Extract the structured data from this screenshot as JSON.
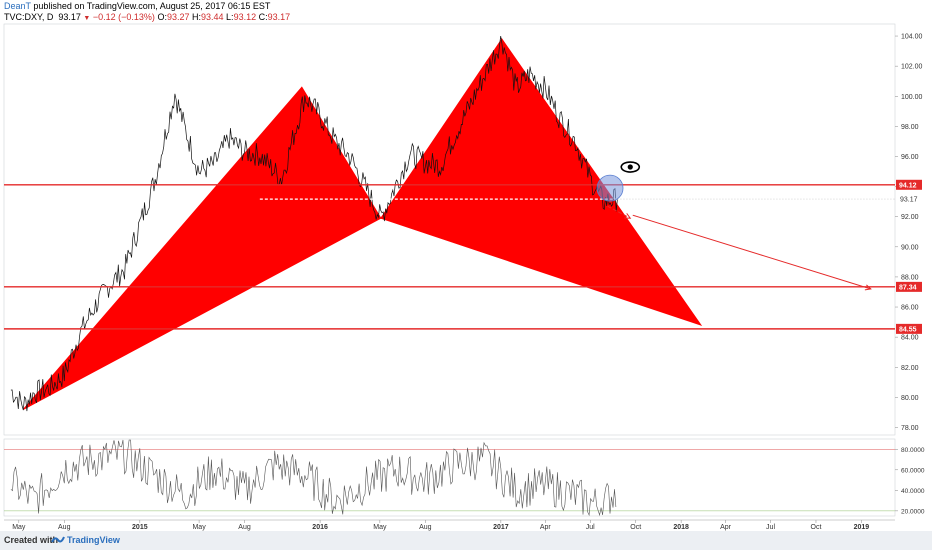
{
  "header": {
    "author": "DeanT",
    "published": " published on TradingView.com, August 25, 2017 06:15 EST",
    "symbol": "TVC:DXY, D",
    "last": "93.17",
    "change": "−0.12 (−0.13%)",
    "o_label": "O:",
    "o_value": "93.27",
    "h_label": "H:",
    "h_value": "93.44",
    "l_label": "L:",
    "l_value": "93.12",
    "c_label": "C:",
    "c_value": "93.17"
  },
  "footer": {
    "created": "Created with",
    "brand": "TradingView"
  },
  "chart_data": [
    {
      "type": "line",
      "series_kind": "price (daily close, approximate)",
      "x": [
        "2014-04-15",
        "2014-05-10",
        "2014-06-01",
        "2014-07-01",
        "2014-08-01",
        "2014-09-01",
        "2014-10-01",
        "2014-11-01",
        "2014-12-01",
        "2015-01-01",
        "2015-02-01",
        "2015-03-13",
        "2015-04-01",
        "2015-05-01",
        "2015-06-01",
        "2015-07-01",
        "2015-08-01",
        "2015-09-01",
        "2015-10-15",
        "2015-12-01",
        "2016-01-01",
        "2016-02-01",
        "2016-03-01",
        "2016-05-03",
        "2016-06-01",
        "2016-07-01",
        "2016-08-01",
        "2016-09-01",
        "2016-10-01",
        "2016-11-01",
        "2017-01-03",
        "2017-02-01",
        "2017-03-01",
        "2017-04-01",
        "2017-05-01",
        "2017-06-01",
        "2017-07-01",
        "2017-07-27",
        "2017-08-25"
      ],
      "values": [
        80.5,
        79.5,
        80.3,
        80.6,
        81.5,
        84.2,
        86.0,
        87.5,
        88.5,
        91.5,
        94.5,
        100.2,
        98.0,
        95.0,
        95.5,
        97.2,
        96.3,
        96.1,
        94.5,
        100.0,
        98.7,
        97.0,
        96.0,
        91.9,
        94.0,
        96.2,
        95.6,
        95.4,
        97.5,
        99.5,
        103.8,
        100.5,
        101.5,
        100.5,
        98.5,
        97.0,
        94.5,
        93.0,
        93.17
      ],
      "xlim": [
        "2014-04-01",
        "2019-03-10"
      ],
      "ylim": [
        77.5,
        104.8
      ],
      "yticks": [
        "78.00",
        "80.00",
        "82.00",
        "84.00",
        "86.00",
        "88.00",
        "90.00",
        "92.00",
        "94.00",
        "96.00",
        "98.00",
        "100.00",
        "102.00",
        "104.00"
      ],
      "xticks": [
        "May",
        "Aug",
        "2015",
        "Feb",
        "May",
        "Aug",
        "2016",
        "May",
        "Aug",
        "2017",
        "Apr",
        "Jul",
        "Oct",
        "2018",
        "Apr",
        "Jul",
        "Oct",
        "2019"
      ],
      "horizontal_levels": [
        {
          "value": 94.12,
          "label": "94.12",
          "color": "#e52a2a"
        },
        {
          "value": 87.34,
          "label": "87.34",
          "color": "#e52a2a"
        },
        {
          "value": 84.55,
          "label": "84.55",
          "color": "#e52a2a"
        }
      ],
      "last_price": {
        "value": 93.17,
        "label": "93.17"
      },
      "harmonic_pattern": {
        "color": "#ff0000",
        "points": [
          {
            "x": "2014-05-10",
            "y": 79.2
          },
          {
            "x": "2015-11-25",
            "y": 100.6
          },
          {
            "x": "2016-05-03",
            "y": 91.9
          },
          {
            "x": "2017-01-03",
            "y": 103.8
          },
          {
            "x": "2018-02-10",
            "y": 84.8
          }
        ]
      },
      "projection_arrows": [
        {
          "from": {
            "x": "2017-08-05",
            "y": 92.7
          },
          "to": {
            "x": "2017-09-20",
            "y": 91.9
          }
        },
        {
          "from": {
            "x": "2017-09-25",
            "y": 92.1
          },
          "to": {
            "x": "2019-01-20",
            "y": 87.2
          }
        }
      ]
    },
    {
      "type": "line",
      "series_kind": "oscillator (approximate)",
      "ylim": [
        15,
        90
      ],
      "yticks": [
        "20.0000",
        "40.0000",
        "60.0000",
        "80.0000"
      ],
      "reference_levels": [
        {
          "value": 80,
          "color": "#e57373"
        },
        {
          "value": 20,
          "color": "#8fbf6a"
        }
      ],
      "x": [
        "2014-04-15",
        "2014-06-01",
        "2014-08-01",
        "2014-10-01",
        "2014-12-01",
        "2015-02-01",
        "2015-04-01",
        "2015-06-01",
        "2015-08-01",
        "2015-10-01",
        "2015-12-01",
        "2016-02-01",
        "2016-04-01",
        "2016-06-01",
        "2016-08-01",
        "2016-10-01",
        "2016-12-01",
        "2017-02-01",
        "2017-04-01",
        "2017-06-01",
        "2017-07-20",
        "2017-08-25"
      ],
      "values": [
        48,
        30,
        62,
        70,
        75,
        55,
        35,
        60,
        40,
        65,
        55,
        30,
        45,
        60,
        50,
        65,
        70,
        40,
        45,
        35,
        25,
        40
      ]
    }
  ]
}
